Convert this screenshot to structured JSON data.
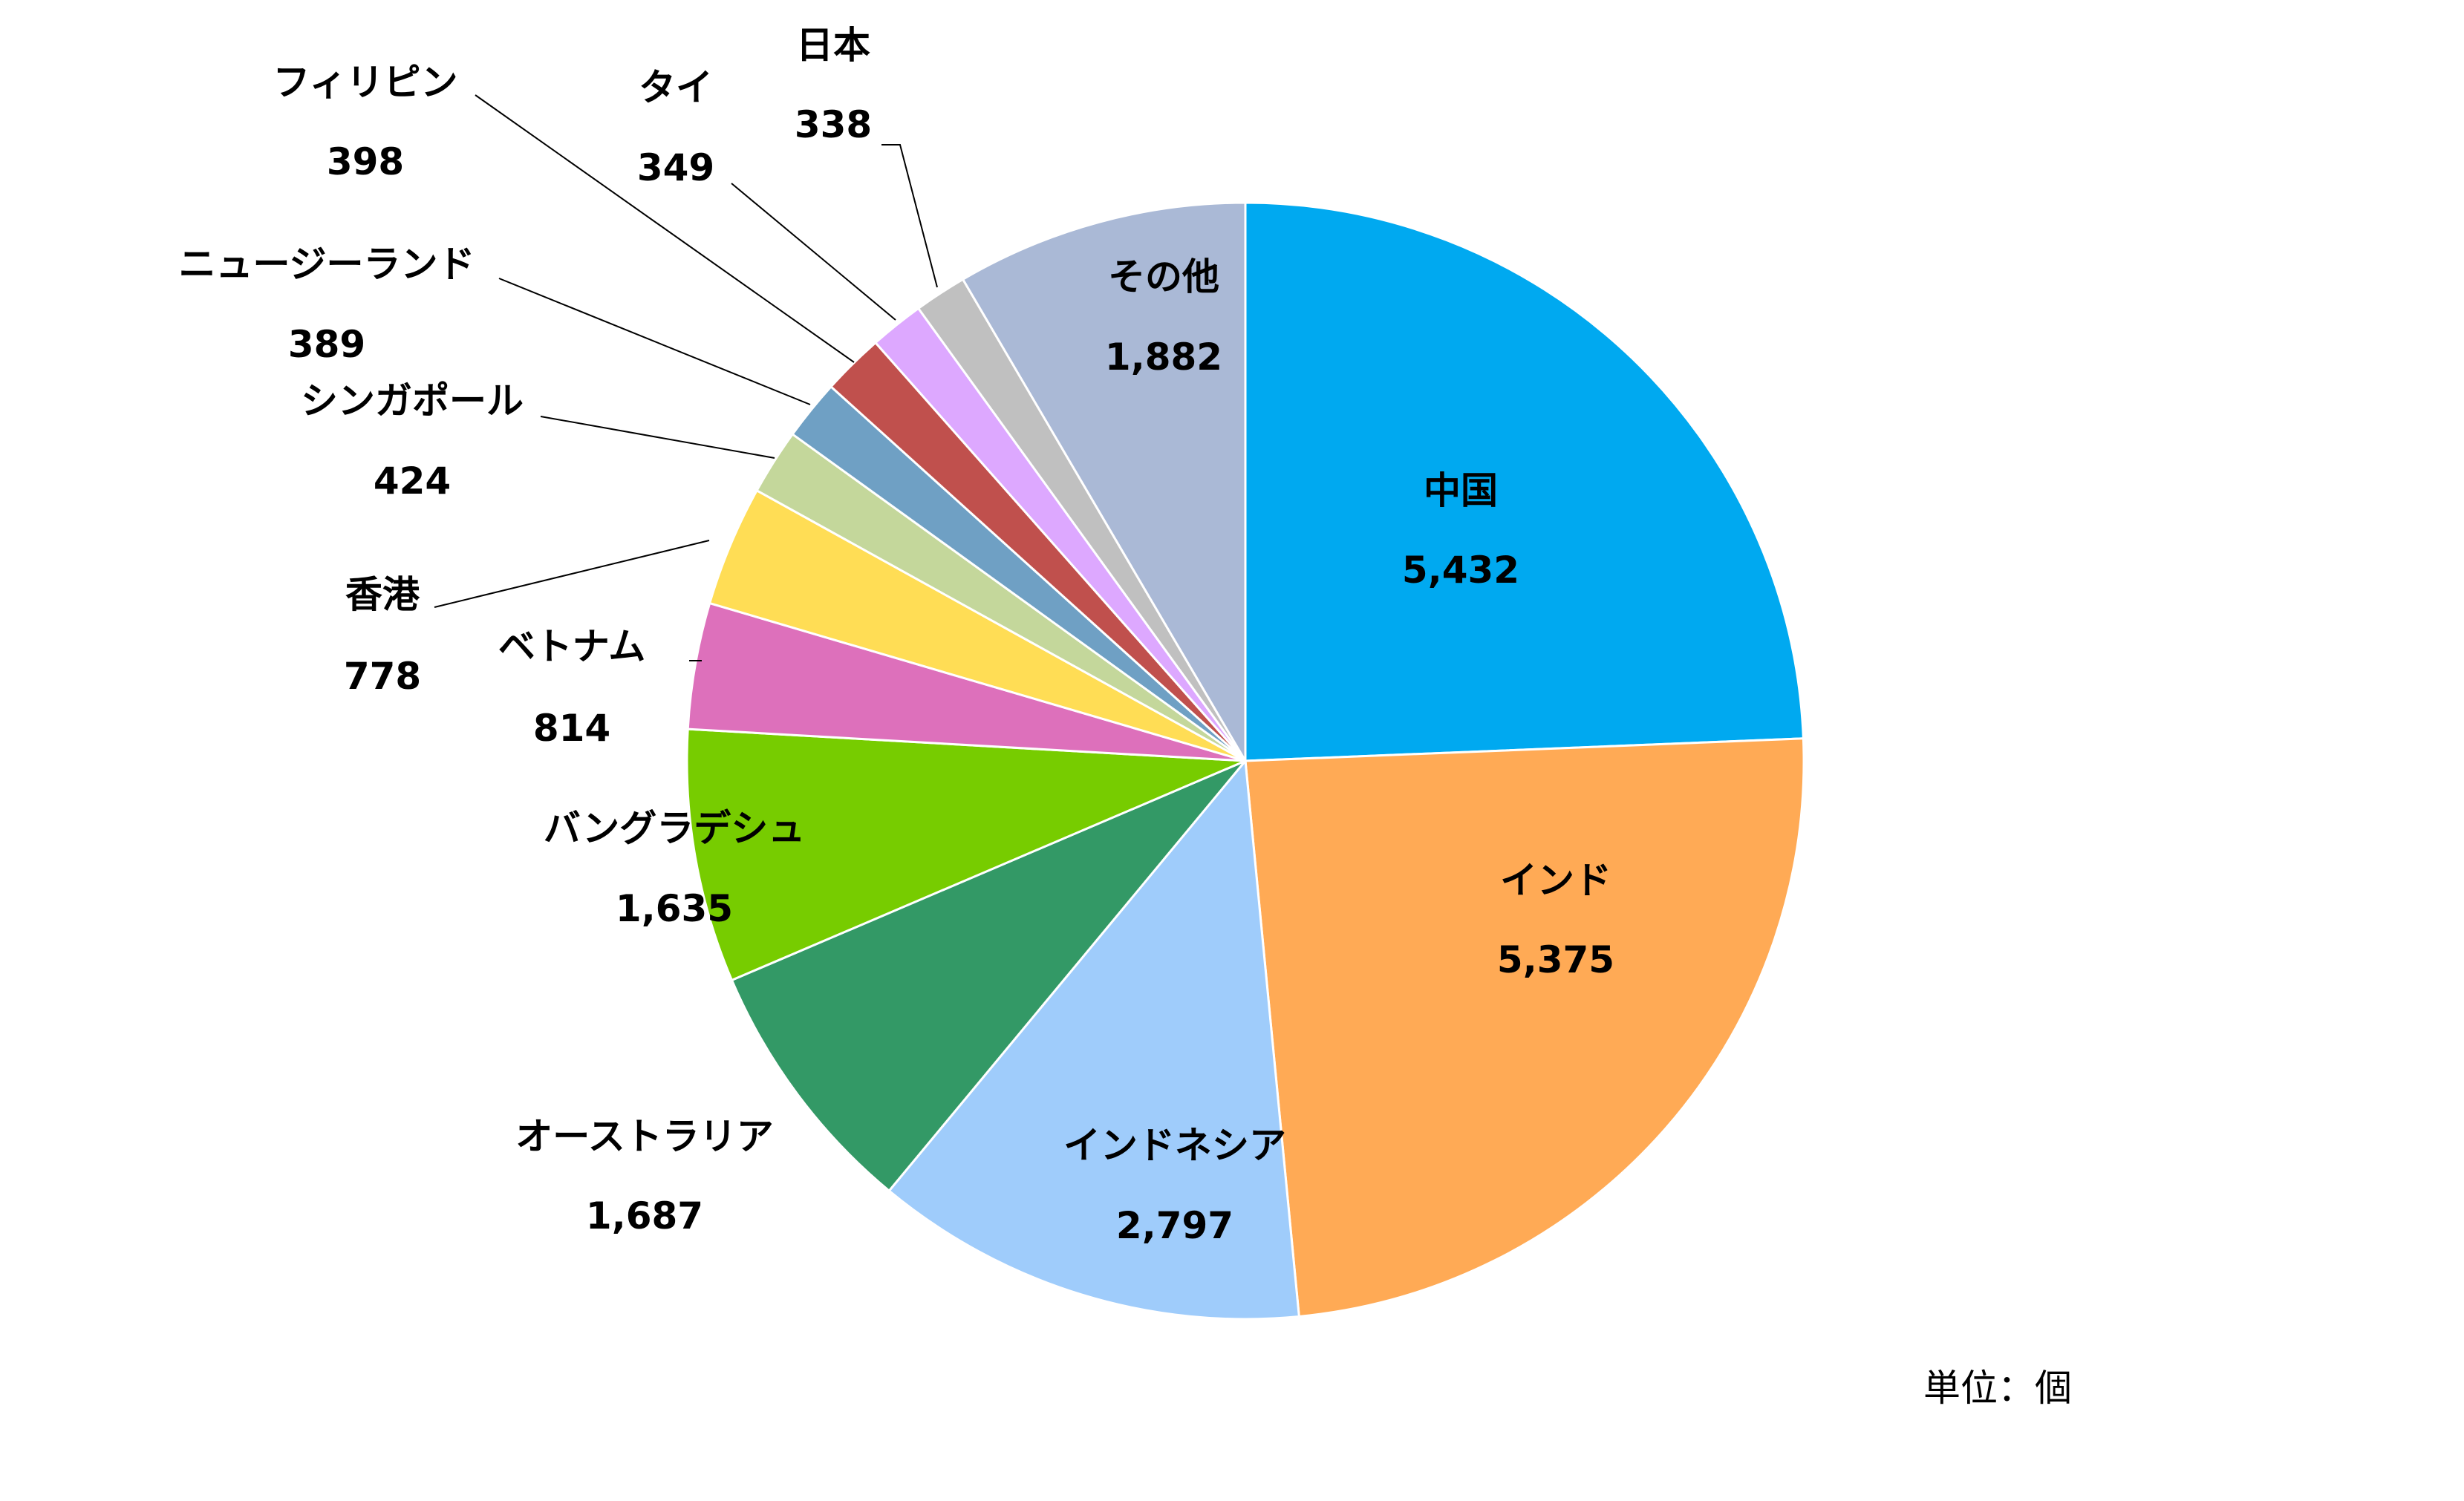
{
  "chart_data": {
    "type": "pie",
    "start_angle_deg": 0,
    "direction": "clockwise",
    "unit_note": "単位：個",
    "slices": [
      {
        "label": "中国",
        "value": 5432,
        "value_text": "5,432",
        "color": "#00A9F0"
      },
      {
        "label": "インド",
        "value": 5375,
        "value_text": "5,375",
        "color": "#FFAA55"
      },
      {
        "label": "インドネシア",
        "value": 2797,
        "value_text": "2,797",
        "color": "#9FCCFB"
      },
      {
        "label": "オーストラリア",
        "value": 1687,
        "value_text": "1,687",
        "color": "#339966"
      },
      {
        "label": "バングラデシュ",
        "value": 1635,
        "value_text": "1,635",
        "color": "#77CC00"
      },
      {
        "label": "ベトナム",
        "value": 814,
        "value_text": "814",
        "color": "#DD70BB"
      },
      {
        "label": "香港",
        "value": 778,
        "value_text": "778",
        "color": "#FFDD55"
      },
      {
        "label": "シンガポール",
        "value": 424,
        "value_text": "424",
        "color": "#C4D79B"
      },
      {
        "label": "ニュージーランド",
        "value": 389,
        "value_text": "389",
        "color": "#6FA0C4"
      },
      {
        "label": "フィリピン",
        "value": 398,
        "value_text": "398",
        "color": "#C0504D"
      },
      {
        "label": "タイ",
        "value": 349,
        "value_text": "349",
        "color": "#DDA8FF"
      },
      {
        "label": "日本",
        "value": 338,
        "value_text": "338",
        "color": "#C0C0C0"
      },
      {
        "label": "その他",
        "value": 1882,
        "value_text": "1,882",
        "color": "#AAB9D6"
      }
    ]
  }
}
